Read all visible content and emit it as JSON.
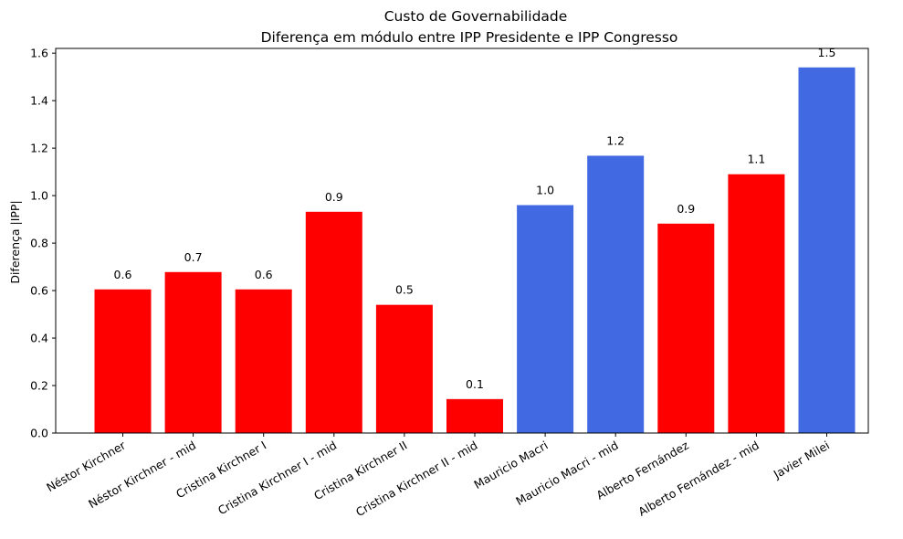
{
  "chart_data": {
    "type": "bar",
    "title": "Custo de Governabilidade",
    "subtitle": "Diferença em módulo entre IPP Presidente e IPP Congresso",
    "xlabel": "",
    "ylabel": "Diferença |IPP|",
    "ylim": [
      0,
      1.62
    ],
    "yticks": [
      0.0,
      0.2,
      0.4,
      0.6,
      0.8,
      1.0,
      1.2,
      1.4,
      1.6
    ],
    "ytick_labels": [
      "0.0",
      "0.2",
      "0.4",
      "0.6",
      "0.8",
      "1.0",
      "1.2",
      "1.4",
      "1.6"
    ],
    "grid": false,
    "legend": "none",
    "categories": [
      "Néstor Kirchner",
      "Néstor Kirchner - mid",
      "Cristina Kirchner I",
      "Cristina Kirchner I - mid",
      "Cristina Kirchner II",
      "Cristina Kirchner II - mid",
      "Mauricio Macri",
      "Mauricio Macri - mid",
      "Alberto Fernández",
      "Alberto Fernández - mid",
      "Javier Milei"
    ],
    "values": [
      0.605,
      0.678,
      0.605,
      0.932,
      0.54,
      0.143,
      0.96,
      1.168,
      0.882,
      1.09,
      1.54
    ],
    "data_labels": [
      "0.6",
      "0.7",
      "0.6",
      "0.9",
      "0.5",
      "0.1",
      "1.0",
      "1.2",
      "0.9",
      "1.1",
      "1.5"
    ],
    "colors": [
      "#ff0000",
      "#ff0000",
      "#ff0000",
      "#ff0000",
      "#ff0000",
      "#ff0000",
      "#4169e1",
      "#4169e1",
      "#ff0000",
      "#ff0000",
      "#4169e1"
    ]
  }
}
